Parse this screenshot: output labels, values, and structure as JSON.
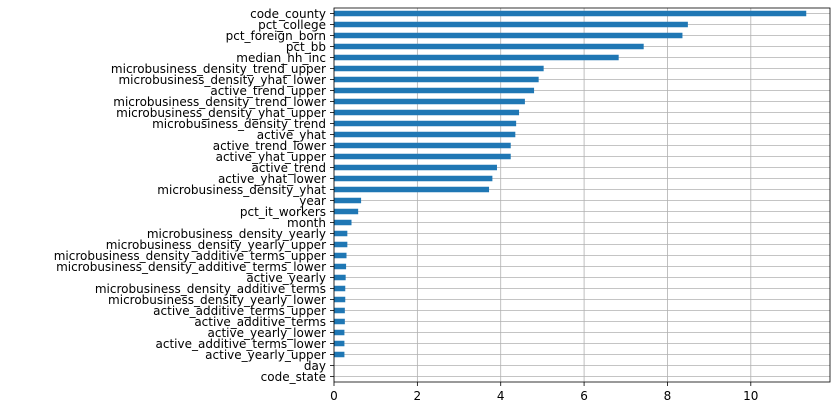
{
  "chart_data": {
    "type": "bar",
    "orientation": "horizontal",
    "title": "",
    "xlabel": "",
    "ylabel": "",
    "grid": true,
    "grid_axis": "x",
    "legend": "none",
    "bar_color": "#1f77b4",
    "xlim": [
      0,
      11.9
    ],
    "xticks": [
      0,
      2,
      4,
      6,
      8,
      10
    ],
    "categories": [
      "code_county",
      "pct_college",
      "pct_foreign_born",
      "pct_bb",
      "median_hh_inc",
      "microbusiness_density_trend_upper",
      "microbusiness_density_yhat_lower",
      "active_trend_upper",
      "microbusiness_density_trend_lower",
      "microbusiness_density_yhat_upper",
      "microbusiness_density_trend",
      "active_yhat",
      "active_trend_lower",
      "active_yhat_upper",
      "active_trend",
      "active_yhat_lower",
      "microbusiness_density_yhat",
      "year",
      "pct_it_workers",
      "month",
      "microbusiness_density_yearly",
      "microbusiness_density_yearly_upper",
      "microbusiness_density_additive_terms_upper",
      "microbusiness_density_additive_terms_lower",
      "active_yearly",
      "microbusiness_density_additive_terms",
      "microbusiness_density_yearly_lower",
      "active_additive_terms_upper",
      "active_additive_terms",
      "active_yearly_lower",
      "active_additive_terms_lower",
      "active_yearly_upper",
      "day",
      "code_state"
    ],
    "values": [
      11.33,
      8.49,
      8.36,
      7.43,
      6.83,
      5.03,
      4.91,
      4.8,
      4.58,
      4.44,
      4.37,
      4.35,
      4.24,
      4.24,
      3.91,
      3.8,
      3.72,
      0.65,
      0.58,
      0.42,
      0.32,
      0.32,
      0.3,
      0.29,
      0.28,
      0.27,
      0.27,
      0.26,
      0.26,
      0.25,
      0.25,
      0.25,
      0.0,
      0.0
    ]
  }
}
